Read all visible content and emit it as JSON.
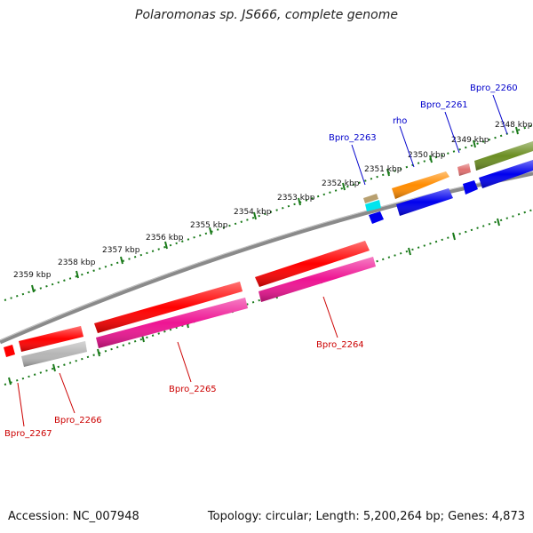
{
  "title": "Polaromonas sp. JS666, complete genome",
  "ticks": [
    "2359 kbp",
    "2358 kbp",
    "2357 kbp",
    "2356 kbp",
    "2355 kbp",
    "2354 kbp",
    "2353 kbp",
    "2352 kbp",
    "2351 kbp",
    "2350 kbp",
    "2349 kbp",
    "2348 kbp"
  ],
  "genes": [
    {
      "label": "Bpro_2260",
      "strand_color": "#0000cc"
    },
    {
      "label": "Bpro_2261",
      "strand_color": "#0000cc"
    },
    {
      "label": "rho",
      "strand_color": "#0000cc"
    },
    {
      "label": "Bpro_2263",
      "strand_color": "#0000cc"
    },
    {
      "label": "Bpro_2264",
      "strand_color": "#cc0000"
    },
    {
      "label": "Bpro_2265",
      "strand_color": "#cc0000"
    },
    {
      "label": "Bpro_2266",
      "strand_color": "#cc0000"
    },
    {
      "label": "Bpro_2267",
      "strand_color": "#cc0000"
    }
  ],
  "footer": {
    "accession": "Accession: NC_007948",
    "summary": "Topology: circular; Length: 5,200,264 bp; Genes: 4,873"
  },
  "colors": {
    "scale_track": "#1a7a1a",
    "backbone": "#8a8a8a",
    "gene_red": "#ff0000",
    "gene_pink": "#ee1493",
    "gene_blue": "#0000ee",
    "gene_orange": "#ff8c00",
    "gene_olive": "#6b8e23",
    "gene_grey": "#b5b5b5",
    "gene_cyan": "#00e5ee"
  }
}
